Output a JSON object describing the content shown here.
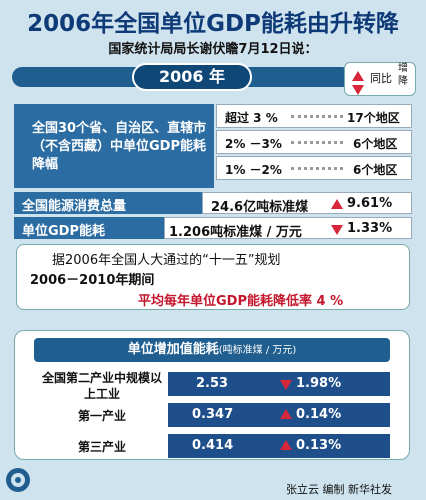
{
  "title": "2006年全国单位GDP能耗由升转降",
  "subtitle": "国家统计局局长谢伏瞻7月12日说：",
  "year_label": "2006 年",
  "legend": {
    "label": "同比",
    "up_down": "增降"
  },
  "regions": {
    "label": "全国30个省、自治区、直辖市（不含西藏）中单位GDP能耗降幅",
    "rows": [
      {
        "range": "超过 3 %",
        "count": "17个地区"
      },
      {
        "range": "2% －3%",
        "count": "6个地区"
      },
      {
        "range": "1% －2%",
        "count": "6个地区"
      }
    ]
  },
  "energy_total": {
    "label": "全国能源消费总量",
    "value": "24.6亿吨标准煤",
    "change": "9.61%",
    "direction": "up"
  },
  "gdp_energy": {
    "label": "单位GDP能耗",
    "value": "1.206吨标准煤 / 万元",
    "change": "1.33%",
    "direction": "down"
  },
  "plan": {
    "line1": "据2006年全国人大通过的“十一五”规划",
    "line2": "2006－2010年期间",
    "line3": "平均每年单位GDP能耗降低率 4 %"
  },
  "chart_data": {
    "type": "table",
    "title": "单位增加值能耗",
    "unit": "(吨标准煤 / 万元)",
    "rows": [
      {
        "category": "全国第二产业中规模以上工业",
        "value": 2.53,
        "value_label": "2.53",
        "change": "1.98%",
        "direction": "down"
      },
      {
        "category": "第一产业",
        "value": 0.347,
        "value_label": "0.347",
        "change": "0.14%",
        "direction": "up"
      },
      {
        "category": "第三产业",
        "value": 0.414,
        "value_label": "0.414",
        "change": "0.13%",
        "direction": "up"
      }
    ]
  },
  "credit": "张立云 编制  新华社发",
  "colors": {
    "accent": "#d8263a",
    "dark_blue": "#1f4f8a",
    "title_blue": "#0e3a78",
    "background": "#cfe3ef"
  }
}
